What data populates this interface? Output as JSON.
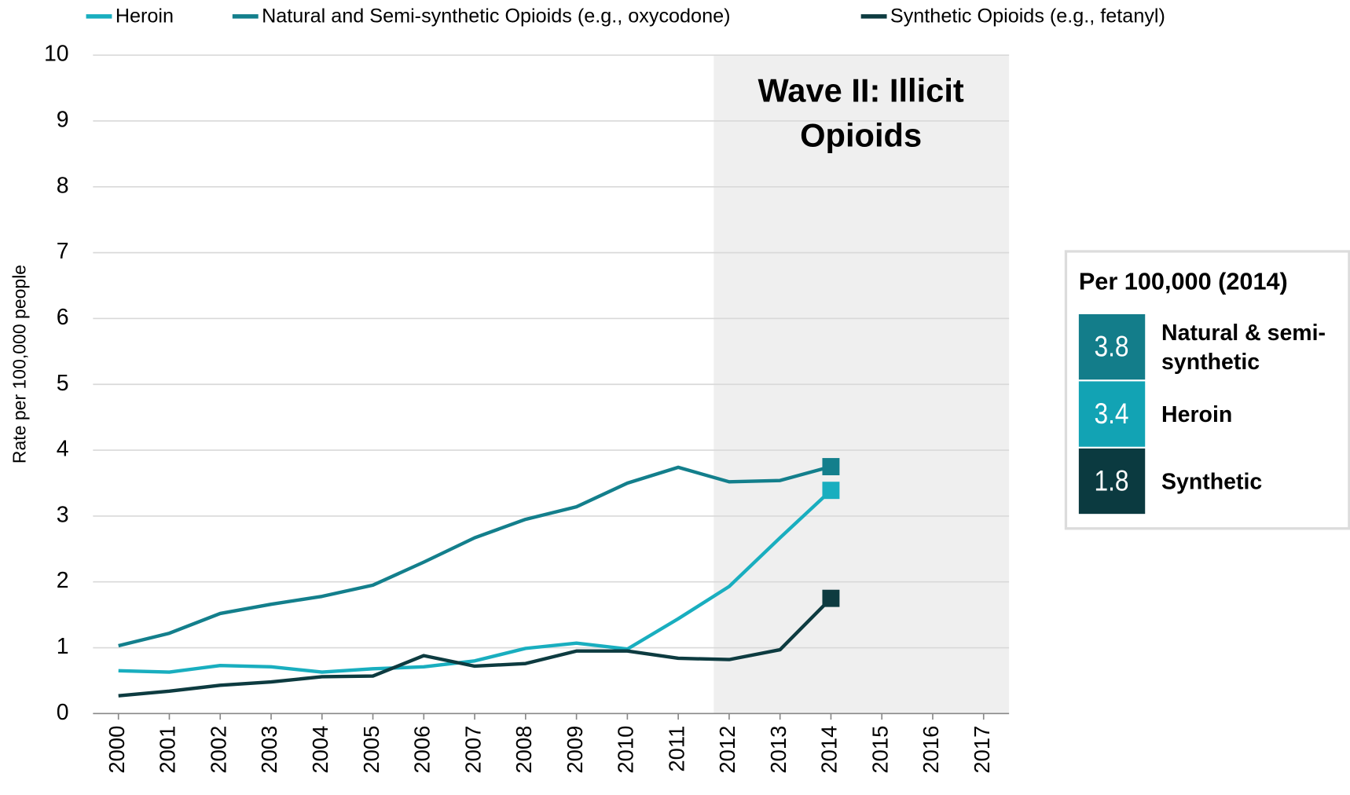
{
  "chart_data": {
    "type": "line",
    "y_label": "Rate per 100,000 people",
    "annotation": "Wave II: Illicit Opioids",
    "categories": [
      "2000",
      "2001",
      "2002",
      "2003",
      "2004",
      "2005",
      "2006",
      "2007",
      "2008",
      "2009",
      "2010",
      "2011",
      "2012",
      "2013",
      "2014",
      "2015",
      "2016",
      "2017"
    ],
    "series": [
      {
        "name": "Heroin",
        "color": "#19aebf",
        "values": [
          0.65,
          0.63,
          0.73,
          0.71,
          0.63,
          0.68,
          0.71,
          0.8,
          0.99,
          1.07,
          0.98,
          1.44,
          1.93,
          2.67,
          3.39,
          null,
          null,
          null
        ]
      },
      {
        "name": "Natural and Semi-synthetic Opioids (e.g., oxycodone)",
        "color": "#137f8c",
        "values": [
          1.03,
          1.22,
          1.52,
          1.66,
          1.78,
          1.95,
          2.3,
          2.67,
          2.95,
          3.14,
          3.5,
          3.74,
          3.52,
          3.54,
          3.75,
          null,
          null,
          null
        ]
      },
      {
        "name": "Synthetic Opioids (e.g., fetanyl)",
        "color": "#0d3b40",
        "values": [
          0.27,
          0.34,
          0.43,
          0.48,
          0.56,
          0.57,
          0.88,
          0.72,
          0.76,
          0.95,
          0.95,
          0.84,
          0.82,
          0.97,
          1.75,
          null,
          null,
          null
        ]
      }
    ],
    "ylim": [
      0,
      10
    ],
    "yticks": [
      0,
      1,
      2,
      3,
      4,
      5,
      6,
      7,
      8,
      9,
      10
    ],
    "grid": true,
    "legend": "top",
    "summary": {
      "title": "Per 100,000 (2014)",
      "items": [
        {
          "value": 3.8,
          "label": "Natural & semi-synthetic",
          "color": "#137d8a"
        },
        {
          "value": 3.4,
          "label": "Heroin",
          "color": "#12a3b4"
        },
        {
          "value": 1.8,
          "label": "Synthetic",
          "color": "#0b3a40"
        }
      ]
    }
  }
}
